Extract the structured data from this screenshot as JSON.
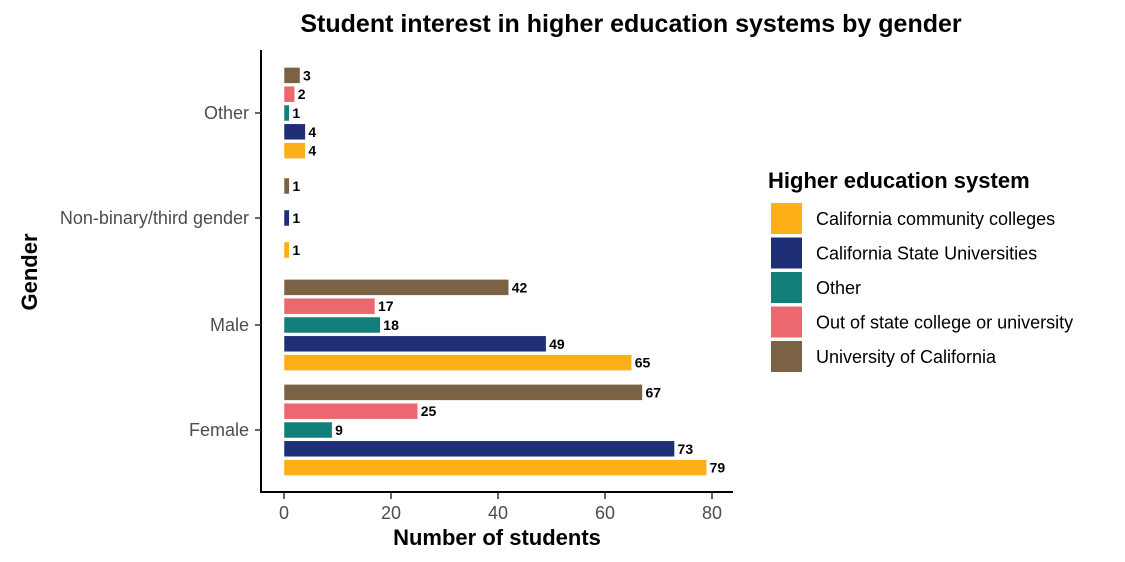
{
  "chart_data": {
    "type": "bar",
    "orientation": "horizontal",
    "title": "Student interest in higher education systems by gender",
    "xlabel": "Number of students",
    "ylabel": "Gender",
    "xlim": [
      0,
      80
    ],
    "x_ticks": [
      0,
      20,
      40,
      60,
      80
    ],
    "categories": [
      "Female",
      "Male",
      "Non-binary/third gender",
      "Other"
    ],
    "legend_title": "Higher education system",
    "legend_position": "right",
    "grid": false,
    "series": [
      {
        "name": "California community colleges",
        "color": "#FCAF17",
        "values": [
          79,
          65,
          1,
          4
        ]
      },
      {
        "name": "California State Universities",
        "color": "#1E2F78",
        "values": [
          73,
          49,
          1,
          4
        ]
      },
      {
        "name": "Other",
        "color": "#137F7A",
        "values": [
          9,
          18,
          null,
          1
        ]
      },
      {
        "name": "Out of state college or university",
        "color": "#EB686E",
        "values": [
          25,
          17,
          null,
          2
        ]
      },
      {
        "name": "University of California",
        "color": "#7B6244",
        "values": [
          67,
          42,
          1,
          3
        ]
      }
    ]
  }
}
